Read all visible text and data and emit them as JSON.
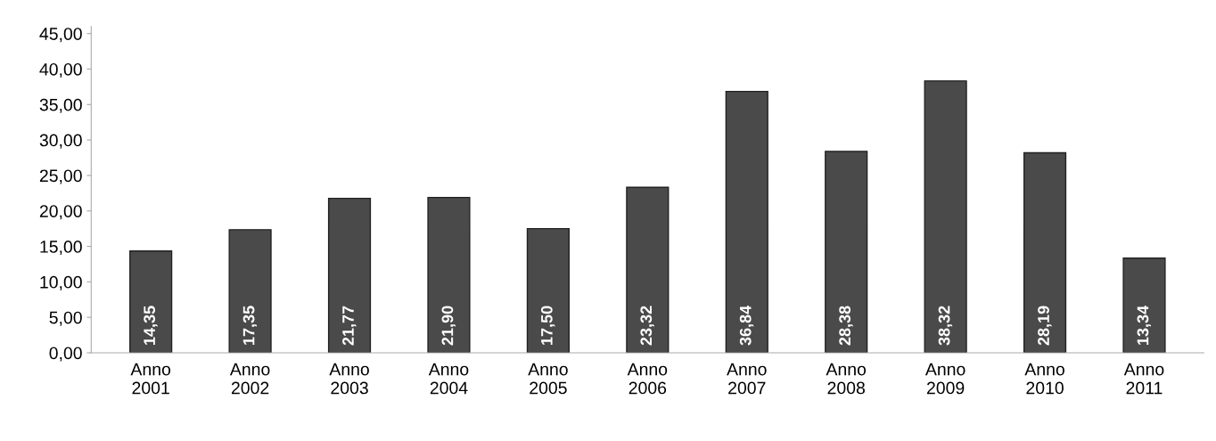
{
  "chart_data": {
    "type": "bar",
    "categories": [
      "Anno\n2001",
      "Anno\n2002",
      "Anno\n2003",
      "Anno\n2004",
      "Anno\n2005",
      "Anno\n2006",
      "Anno\n2007",
      "Anno\n2008",
      "Anno\n2009",
      "Anno\n2010",
      "Anno\n2011"
    ],
    "values": [
      14.35,
      17.35,
      21.77,
      21.9,
      17.5,
      23.32,
      36.84,
      28.38,
      38.32,
      28.19,
      13.34
    ],
    "value_labels": [
      "14,35",
      "17,35",
      "21,77",
      "21,90",
      "17,50",
      "23,32",
      "36,84",
      "28,38",
      "38,32",
      "28,19",
      "13,34"
    ],
    "color": "#4a4a4a",
    "ylim": [
      0,
      46
    ],
    "yticks": [
      {
        "value": 0,
        "label": "0,00"
      },
      {
        "value": 5,
        "label": "5,00"
      },
      {
        "value": 10,
        "label": "10,00"
      },
      {
        "value": 15,
        "label": "15,00"
      },
      {
        "value": 20,
        "label": "20,00"
      },
      {
        "value": 25,
        "label": "25,00"
      },
      {
        "value": 30,
        "label": "30,00"
      },
      {
        "value": 35,
        "label": "35,00"
      },
      {
        "value": 40,
        "label": "40,00"
      },
      {
        "value": 45,
        "label": "45,00"
      }
    ],
    "grid": false,
    "legend": false
  }
}
